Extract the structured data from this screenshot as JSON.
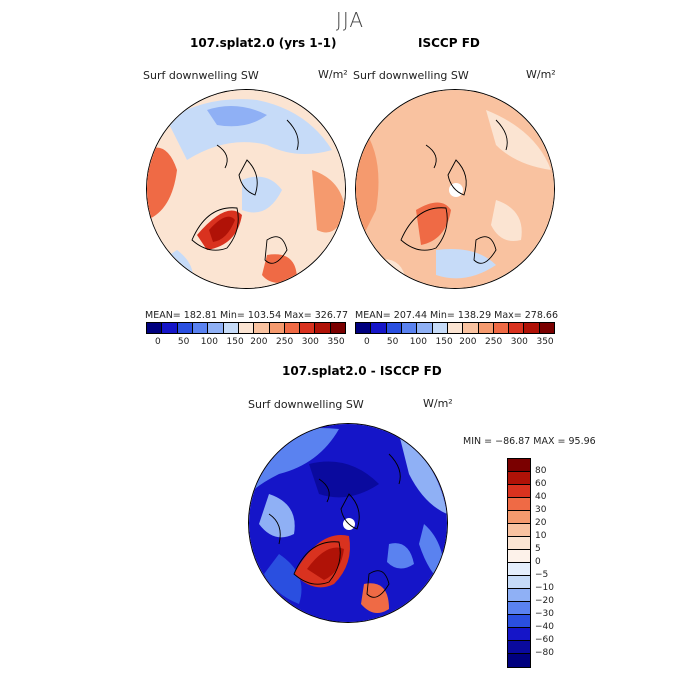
{
  "season": "JJA",
  "panels": {
    "model": {
      "title": "107.splat2.0 (yrs 1-1)",
      "variable": "Surf downwelling SW",
      "units": "W/m²",
      "stats": {
        "mean": "182.81",
        "min": "103.54",
        "max": "326.77"
      },
      "stats_text": "MEAN= 182.81    Min= 103.54    Max= 326.77"
    },
    "obs": {
      "title": "ISCCP FD",
      "variable": "Surf downwelling SW",
      "units": "W/m²",
      "stats": {
        "mean": "207.44",
        "min": "138.29",
        "max": "278.66"
      },
      "stats_text": "MEAN= 207.44    Min= 138.29    Max= 278.66"
    },
    "diff": {
      "title": "107.splat2.0 - ISCCP FD",
      "variable": "Surf downwelling SW",
      "units": "W/m²",
      "stats": {
        "min": "-86.87",
        "max": "95.96"
      },
      "stats_text": "MIN = −86.87  MAX =   95.96"
    }
  },
  "colorbar_abs": {
    "ticks": [
      "0",
      "50",
      "100",
      "150",
      "200",
      "250",
      "300",
      "350"
    ],
    "colors": [
      "#00007f",
      "#1515c8",
      "#2a4fe0",
      "#5a82f0",
      "#8fb0f5",
      "#c6dbf8",
      "#fbe4d2",
      "#f9c2a0",
      "#f59a6e",
      "#ef6a45",
      "#d9321f",
      "#b01207",
      "#7a0000"
    ]
  },
  "colorbar_diff": {
    "labels": [
      "80",
      "60",
      "40",
      "30",
      "20",
      "10",
      "5",
      "0",
      "−5",
      "−10",
      "−20",
      "−30",
      "−40",
      "−60",
      "−80"
    ],
    "colors": [
      "#7a0000",
      "#b01207",
      "#d9321f",
      "#ef6a45",
      "#f59a6e",
      "#f9c2a0",
      "#fbe4d2",
      "#fdf2ea",
      "#e4eefc",
      "#c6dbf8",
      "#8fb0f5",
      "#5a82f0",
      "#2a4fe0",
      "#1515c8",
      "#0a0a9e",
      "#00007f"
    ]
  }
}
